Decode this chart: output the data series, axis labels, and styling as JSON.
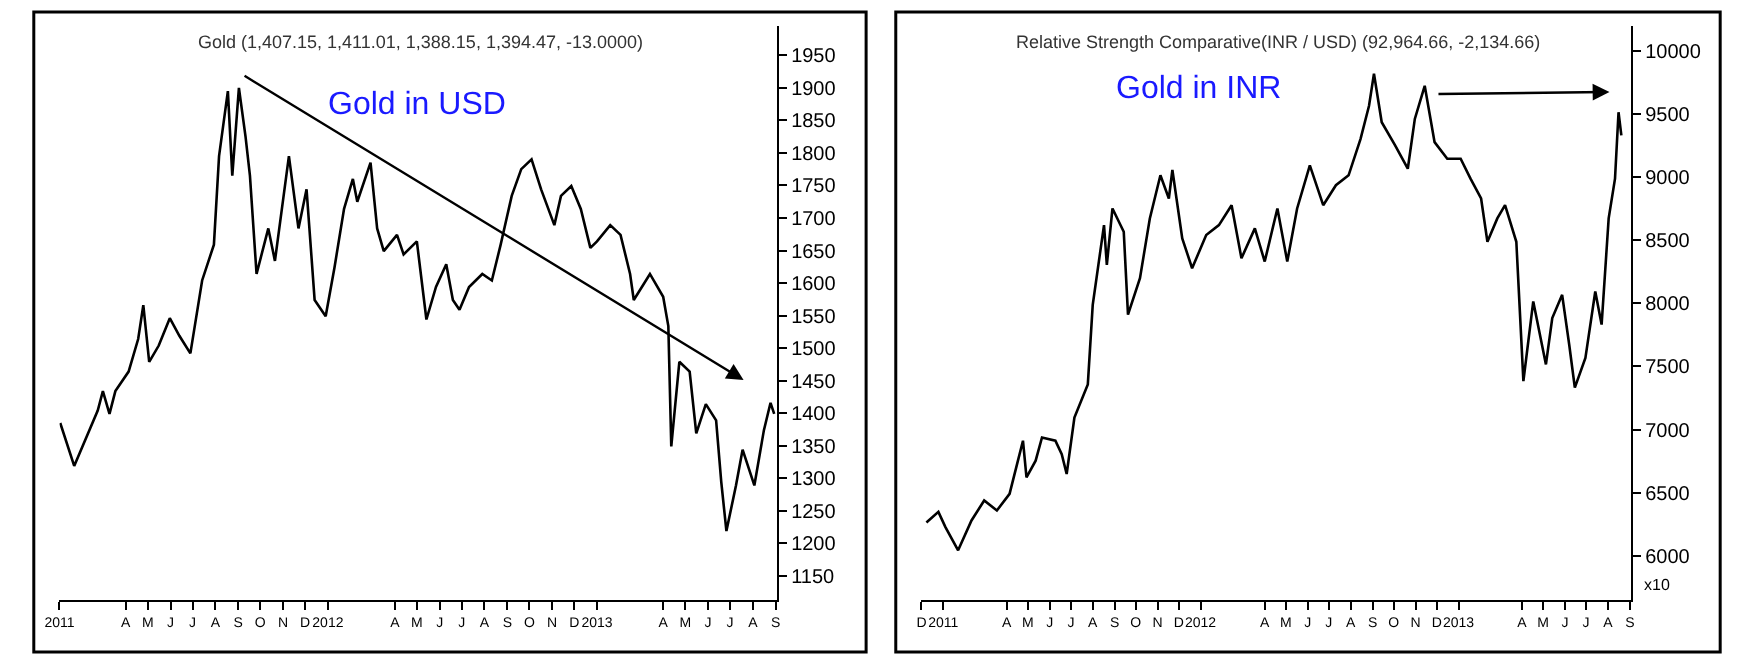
{
  "chart_data": [
    {
      "type": "line",
      "title": "Gold (1,407.15, 1,411.01, 1,388.15, 1,394.47, -13.0000)",
      "annotations": [
        "Gold in USD"
      ],
      "marker": "none",
      "line_style": "solid",
      "x": [
        "2011-01-02",
        "2011-01-21",
        "2011-02-22",
        "2011-03-01",
        "2011-03-10",
        "2011-03-18",
        "2011-04-05",
        "2011-04-18",
        "2011-04-25",
        "2011-05-03",
        "2011-05-16",
        "2011-05-31",
        "2011-06-13",
        "2011-06-28",
        "2011-07-14",
        "2011-07-30",
        "2011-08-06",
        "2011-08-18",
        "2011-08-24",
        "2011-09-02",
        "2011-09-11",
        "2011-09-17",
        "2011-09-26",
        "2011-10-12",
        "2011-10-21",
        "2011-11-09",
        "2011-11-22",
        "2011-12-03",
        "2011-12-14",
        "2011-12-29",
        "2012-01-10",
        "2012-01-23",
        "2012-02-04",
        "2012-02-10",
        "2012-02-28",
        "2012-03-08",
        "2012-03-17",
        "2012-04-04",
        "2012-04-13",
        "2012-05-01",
        "2012-05-14",
        "2012-05-27",
        "2012-06-10",
        "2012-06-19",
        "2012-06-28",
        "2012-07-11",
        "2012-07-29",
        "2012-08-11",
        "2012-08-23",
        "2012-09-07",
        "2012-09-20",
        "2012-10-04",
        "2012-10-17",
        "2012-11-04",
        "2012-11-13",
        "2012-11-27",
        "2012-12-10",
        "2012-12-23",
        "2013-01-01",
        "2013-01-19",
        "2013-02-02",
        "2013-02-15",
        "2013-02-20",
        "2013-03-14",
        "2013-04-01",
        "2013-04-08",
        "2013-04-12",
        "2013-04-23",
        "2013-05-07",
        "2013-05-16",
        "2013-05-29",
        "2013-06-12",
        "2013-06-19",
        "2013-06-26",
        "2013-07-09",
        "2013-07-18",
        "2013-08-03",
        "2013-08-16",
        "2013-08-25",
        "2013-08-30"
      ],
      "series": [
        {
          "color": "#000000",
          "values": [
            1385,
            1319,
            1404,
            1434,
            1399,
            1434,
            1464,
            1514,
            1566,
            1479,
            1504,
            1546,
            1519,
            1492,
            1604,
            1659,
            1795,
            1895,
            1765,
            1900,
            1825,
            1765,
            1614,
            1684,
            1634,
            1795,
            1684,
            1744,
            1574,
            1549,
            1624,
            1714,
            1760,
            1725,
            1785,
            1684,
            1649,
            1674,
            1644,
            1664,
            1544,
            1594,
            1629,
            1574,
            1559,
            1594,
            1614,
            1604,
            1659,
            1734,
            1775,
            1790,
            1744,
            1689,
            1734,
            1749,
            1714,
            1654,
            1664,
            1689,
            1674,
            1614,
            1574,
            1614,
            1579,
            1534,
            1349,
            1479,
            1464,
            1369,
            1414,
            1389,
            1294,
            1219,
            1289,
            1344,
            1289,
            1374,
            1416,
            1399
          ]
        }
      ],
      "xlim": [
        "2011-01-01",
        "2013-09-03"
      ],
      "ylim": [
        1113,
        1995
      ],
      "yticks": [
        1150,
        1200,
        1250,
        1300,
        1350,
        1400,
        1450,
        1500,
        1550,
        1600,
        1650,
        1700,
        1750,
        1800,
        1850,
        1900,
        1950
      ],
      "xticks": [
        {
          "value": "2011-01-01",
          "label": "2011"
        },
        {
          "value": "2011-04-01",
          "label": "A"
        },
        {
          "value": "2011-05-01",
          "label": "M"
        },
        {
          "value": "2011-06-01",
          "label": "J"
        },
        {
          "value": "2011-07-01",
          "label": "J"
        },
        {
          "value": "2011-08-01",
          "label": "A"
        },
        {
          "value": "2011-09-01",
          "label": "S"
        },
        {
          "value": "2011-10-01",
          "label": "O"
        },
        {
          "value": "2011-11-01",
          "label": "N"
        },
        {
          "value": "2011-12-01",
          "label": "D"
        },
        {
          "value": "2012-01-01",
          "label": "2012"
        },
        {
          "value": "2012-04-01",
          "label": "A"
        },
        {
          "value": "2012-05-01",
          "label": "M"
        },
        {
          "value": "2012-06-01",
          "label": "J"
        },
        {
          "value": "2012-07-01",
          "label": "J"
        },
        {
          "value": "2012-08-01",
          "label": "A"
        },
        {
          "value": "2012-09-01",
          "label": "S"
        },
        {
          "value": "2012-10-01",
          "label": "O"
        },
        {
          "value": "2012-11-01",
          "label": "N"
        },
        {
          "value": "2012-12-01",
          "label": "D"
        },
        {
          "value": "2013-01-01",
          "label": "2013"
        },
        {
          "value": "2013-04-01",
          "label": "A"
        },
        {
          "value": "2013-05-01",
          "label": "M"
        },
        {
          "value": "2013-06-01",
          "label": "J"
        },
        {
          "value": "2013-07-01",
          "label": "J"
        },
        {
          "value": "2013-08-01",
          "label": "A"
        },
        {
          "value": "2013-09-01",
          "label": "S"
        }
      ]
    },
    {
      "type": "line",
      "title": "Relative Strength Comparative(INR / USD) (92,964.66, -2,134.66)",
      "annotations": [
        "Gold in INR",
        "x10"
      ],
      "marker": "none",
      "line_style": "solid",
      "x": [
        "2010-12-08",
        "2010-12-25",
        "2011-01-04",
        "2011-01-22",
        "2011-02-10",
        "2011-02-28",
        "2011-03-18",
        "2011-04-05",
        "2011-04-24",
        "2011-04-29",
        "2011-05-12",
        "2011-05-21",
        "2011-06-09",
        "2011-06-18",
        "2011-06-25",
        "2011-07-06",
        "2011-07-25",
        "2011-08-01",
        "2011-08-17",
        "2011-08-21",
        "2011-08-29",
        "2011-09-14",
        "2011-09-20",
        "2011-10-07",
        "2011-10-21",
        "2011-11-05",
        "2011-11-17",
        "2011-11-22",
        "2011-12-06",
        "2011-12-20",
        "2012-01-09",
        "2012-01-27",
        "2012-02-14",
        "2012-02-28",
        "2012-03-18",
        "2012-04-01",
        "2012-04-19",
        "2012-05-03",
        "2012-05-17",
        "2012-06-04",
        "2012-06-23",
        "2012-07-11",
        "2012-07-29",
        "2012-08-15",
        "2012-08-27",
        "2012-09-03",
        "2012-09-14",
        "2012-10-03",
        "2012-10-21",
        "2012-10-31",
        "2012-11-14",
        "2012-11-28",
        "2012-12-16",
        "2013-01-04",
        "2013-01-18",
        "2013-02-02",
        "2013-02-11",
        "2013-02-25",
        "2013-03-08",
        "2013-03-24",
        "2013-04-03",
        "2013-04-17",
        "2013-05-05",
        "2013-05-14",
        "2013-05-28",
        "2013-06-07",
        "2013-06-15",
        "2013-06-30",
        "2013-07-14",
        "2013-07-23",
        "2013-08-02",
        "2013-08-11",
        "2013-08-16",
        "2013-08-20"
      ],
      "series": [
        {
          "color": "#000000",
          "values": [
            6263,
            6347,
            6226,
            6042,
            6279,
            6437,
            6358,
            6490,
            6911,
            6621,
            6753,
            6937,
            6911,
            6805,
            6647,
            7095,
            7358,
            7989,
            8621,
            8305,
            8753,
            8568,
            7911,
            8200,
            8674,
            9016,
            8832,
            9058,
            8516,
            8279,
            8542,
            8621,
            8779,
            8358,
            8595,
            8332,
            8753,
            8332,
            8753,
            9095,
            8779,
            8937,
            9016,
            9305,
            9568,
            9821,
            9437,
            9253,
            9068,
            9463,
            9726,
            9279,
            9147,
            9147,
            8989,
            8832,
            8489,
            8674,
            8779,
            8489,
            7384,
            8016,
            7516,
            7884,
            8068,
            7674,
            7332,
            7568,
            8095,
            7832,
            8674,
            8989,
            9516,
            9332
          ]
        }
      ],
      "xlim": [
        "2010-12-01",
        "2013-09-03"
      ],
      "ylim": [
        5648,
        10200
      ],
      "yticks": [
        6000,
        6500,
        7000,
        7500,
        8000,
        8500,
        9000,
        9500,
        10000
      ],
      "xticks": [
        {
          "value": "2010-12-01",
          "label": "D"
        },
        {
          "value": "2011-01-01",
          "label": "2011"
        },
        {
          "value": "2011-04-01",
          "label": "A"
        },
        {
          "value": "2011-05-01",
          "label": "M"
        },
        {
          "value": "2011-06-01",
          "label": "J"
        },
        {
          "value": "2011-07-01",
          "label": "J"
        },
        {
          "value": "2011-08-01",
          "label": "A"
        },
        {
          "value": "2011-09-01",
          "label": "S"
        },
        {
          "value": "2011-10-01",
          "label": "O"
        },
        {
          "value": "2011-11-01",
          "label": "N"
        },
        {
          "value": "2011-12-01",
          "label": "D"
        },
        {
          "value": "2012-01-01",
          "label": "2012"
        },
        {
          "value": "2012-04-01",
          "label": "A"
        },
        {
          "value": "2012-05-01",
          "label": "M"
        },
        {
          "value": "2012-06-01",
          "label": "J"
        },
        {
          "value": "2012-07-01",
          "label": "J"
        },
        {
          "value": "2012-08-01",
          "label": "A"
        },
        {
          "value": "2012-09-01",
          "label": "S"
        },
        {
          "value": "2012-10-01",
          "label": "O"
        },
        {
          "value": "2012-11-01",
          "label": "N"
        },
        {
          "value": "2012-12-01",
          "label": "D"
        },
        {
          "value": "2013-01-01",
          "label": "2013"
        },
        {
          "value": "2013-04-01",
          "label": "A"
        },
        {
          "value": "2013-05-01",
          "label": "M"
        },
        {
          "value": "2013-06-01",
          "label": "J"
        },
        {
          "value": "2013-07-01",
          "label": "J"
        },
        {
          "value": "2013-08-01",
          "label": "A"
        },
        {
          "value": "2013-09-01",
          "label": "S"
        }
      ]
    }
  ]
}
